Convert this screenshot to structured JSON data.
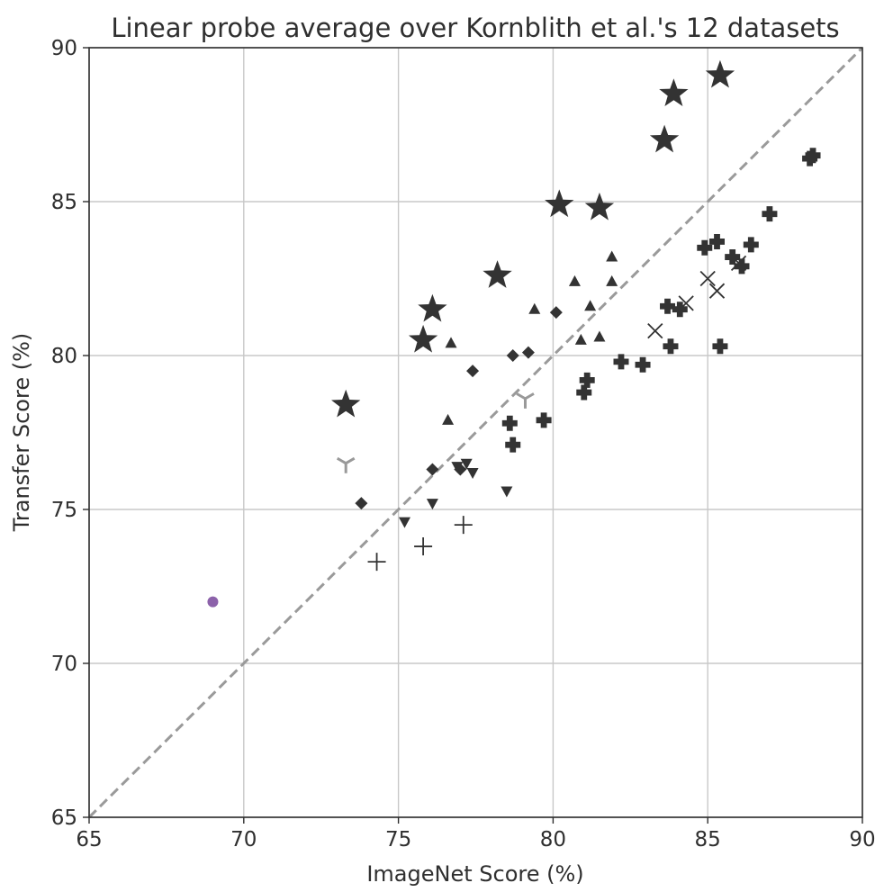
{
  "chart_data": {
    "type": "scatter",
    "title": "Linear probe average over Kornblith et al.'s 12 datasets",
    "xlabel": "ImageNet Score (%)",
    "ylabel": "Transfer Score (%)",
    "xlim": [
      65,
      90
    ],
    "ylim": [
      65,
      90
    ],
    "xticks": [
      "65",
      "70",
      "75",
      "80",
      "85",
      "90"
    ],
    "yticks": [
      "65",
      "70",
      "75",
      "80",
      "85",
      "90"
    ],
    "grid": true,
    "legend": "none",
    "reference_line": {
      "from": [
        65,
        65
      ],
      "to": [
        90,
        90
      ],
      "style": "dashed",
      "color": "#9a9a9a"
    },
    "series": [
      {
        "marker": "star",
        "color": "#333333",
        "points": [
          [
            73.3,
            78.4
          ],
          [
            75.8,
            80.5
          ],
          [
            76.1,
            81.5
          ],
          [
            78.2,
            82.6
          ],
          [
            80.2,
            84.9
          ],
          [
            81.5,
            84.8
          ],
          [
            83.6,
            87.0
          ],
          [
            83.9,
            88.5
          ],
          [
            85.4,
            89.1
          ]
        ]
      },
      {
        "marker": "triangle-up",
        "color": "#333333",
        "points": [
          [
            76.6,
            77.9
          ],
          [
            76.7,
            80.4
          ],
          [
            79.4,
            81.5
          ],
          [
            80.7,
            82.4
          ],
          [
            80.9,
            80.5
          ],
          [
            81.2,
            81.6
          ],
          [
            81.5,
            80.6
          ],
          [
            81.9,
            83.2
          ],
          [
            81.9,
            82.4
          ]
        ]
      },
      {
        "marker": "diamond",
        "color": "#333333",
        "points": [
          [
            73.8,
            75.2
          ],
          [
            76.1,
            76.3
          ],
          [
            77.0,
            76.3
          ],
          [
            77.4,
            79.5
          ],
          [
            78.7,
            80.0
          ],
          [
            79.2,
            80.1
          ],
          [
            80.1,
            81.4
          ]
        ]
      },
      {
        "marker": "triangle-down",
        "color": "#333333",
        "points": [
          [
            75.2,
            74.6
          ],
          [
            76.1,
            75.2
          ],
          [
            76.9,
            76.4
          ],
          [
            77.2,
            76.5
          ],
          [
            77.4,
            76.2
          ],
          [
            78.5,
            75.6
          ]
        ]
      },
      {
        "marker": "plus",
        "color": "#333333",
        "points": [
          [
            74.3,
            73.3
          ],
          [
            75.8,
            73.8
          ],
          [
            77.1,
            74.5
          ]
        ]
      },
      {
        "marker": "tri-down",
        "color": "#999999",
        "points": [
          [
            73.3,
            76.5
          ],
          [
            79.1,
            78.6
          ]
        ]
      },
      {
        "marker": "x",
        "color": "#333333",
        "points": [
          [
            83.3,
            80.8
          ],
          [
            84.3,
            81.7
          ],
          [
            85.0,
            82.5
          ],
          [
            85.3,
            82.1
          ],
          [
            86.0,
            83.0
          ]
        ]
      },
      {
        "marker": "plus-filled",
        "color": "#333333",
        "points": [
          [
            78.6,
            77.8
          ],
          [
            78.7,
            77.1
          ],
          [
            79.7,
            77.9
          ],
          [
            81.0,
            78.8
          ],
          [
            81.1,
            79.2
          ],
          [
            82.2,
            79.8
          ],
          [
            82.9,
            79.7
          ],
          [
            83.7,
            81.6
          ],
          [
            83.8,
            80.3
          ],
          [
            84.1,
            81.5
          ],
          [
            84.9,
            83.5
          ],
          [
            85.3,
            83.7
          ],
          [
            85.4,
            80.3
          ],
          [
            85.8,
            83.2
          ],
          [
            86.1,
            82.9
          ],
          [
            86.4,
            83.6
          ],
          [
            87.0,
            84.6
          ],
          [
            88.3,
            86.4
          ],
          [
            88.4,
            86.5
          ]
        ]
      },
      {
        "marker": "circle",
        "color": "#8c62aa",
        "points": [
          [
            69.0,
            72.0
          ]
        ]
      }
    ]
  }
}
